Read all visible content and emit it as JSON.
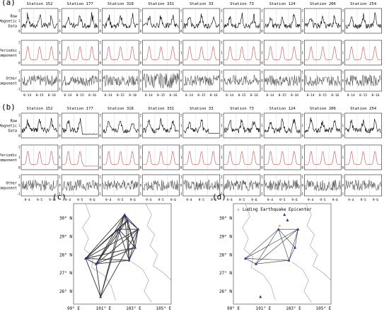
{
  "panel_labels": [
    "(a)",
    "(b)",
    "(c)",
    "(d)"
  ],
  "stations": [
    "Station 152",
    "Station 177",
    "Station 318",
    "Station 331",
    "Station 33",
    "Station 73",
    "Station 124",
    "Station 206",
    "Station 254"
  ],
  "row_labels": {
    "raw": [
      "Raw",
      "Magnetic",
      "Data"
    ],
    "periodic": [
      "Periodic",
      "Component"
    ],
    "other": [
      "Other",
      "Component"
    ]
  },
  "colors": {
    "raw": "#000000",
    "periodic": "#c0504d",
    "other": "#555555",
    "network_edge": "#333333",
    "station_marker": "#1f2fa8",
    "epicenter": "#e67e22",
    "boundary": "#9a9a9a",
    "frame": "#666666"
  },
  "chart_data": [
    {
      "type": "line",
      "panel": "(a)",
      "x_ticks": [
        "8-14",
        "8-15",
        "8-16"
      ],
      "rows": [
        {
          "name": "Raw Magnetic Data",
          "y_ticks": [
            "0",
            "1",
            "2"
          ],
          "ylim": [
            0,
            2
          ],
          "pattern": "jagged daily peaks"
        },
        {
          "name": "Periodic Component",
          "y_ticks": [
            "0",
            "1",
            "2"
          ],
          "ylim": [
            0,
            2
          ],
          "pattern": "daily cycle"
        },
        {
          "name": "Other Component",
          "y_ticks": [
            "-1",
            "0",
            "1"
          ],
          "ylim": [
            -1,
            1
          ],
          "pattern": "noise around 0"
        }
      ],
      "stations": [
        "Station 152",
        "Station 177",
        "Station 318",
        "Station 331",
        "Station 33",
        "Station 73",
        "Station 124",
        "Station 206",
        "Station 254"
      ]
    },
    {
      "type": "line",
      "panel": "(b)",
      "x_ticks": [
        "9-4",
        "9-5",
        "9-6"
      ],
      "rows": [
        {
          "name": "Raw Magnetic Data",
          "y_ticks": [
            "0",
            "1",
            "2"
          ],
          "ylim": [
            0,
            2
          ],
          "pattern": "jagged daily peaks"
        },
        {
          "name": "Periodic Component",
          "y_ticks": [
            "0",
            "1",
            "2"
          ],
          "ylim": [
            0,
            2
          ],
          "pattern": "daily cycle"
        },
        {
          "name": "Other Component",
          "y_ticks": [
            "-1",
            "0",
            "1"
          ],
          "ylim": [
            -1,
            1
          ],
          "pattern": "noise around 0"
        }
      ],
      "stations": [
        "Station 152",
        "Station 177",
        "Station 318",
        "Station 331",
        "Station 33",
        "Station 73",
        "Station 124",
        "Station 206",
        "Station 254"
      ]
    },
    {
      "type": "scatter",
      "panel": "(c)",
      "x_ticks": [
        "99° E",
        "101° E",
        "103° E",
        "105° E"
      ],
      "y_ticks": [
        "30° N",
        "29° N",
        "28° N",
        "27° N",
        "26° N"
      ],
      "xlim": [
        99,
        105.5
      ],
      "ylim": [
        25.3,
        30.8
      ],
      "stations_lonlat": [
        [
          102.4,
          30.2
        ],
        [
          103.3,
          29.4
        ],
        [
          102.0,
          29.4
        ],
        [
          99.8,
          27.8
        ],
        [
          102.7,
          27.7
        ],
        [
          103.1,
          28.4
        ],
        [
          100.5,
          27.5
        ],
        [
          100.8,
          25.7
        ],
        [
          102.6,
          29.9
        ]
      ],
      "edges": [
        [
          0,
          1
        ],
        [
          0,
          2
        ],
        [
          0,
          3
        ],
        [
          0,
          4
        ],
        [
          0,
          5
        ],
        [
          0,
          6
        ],
        [
          0,
          7
        ],
        [
          0,
          8
        ],
        [
          1,
          2
        ],
        [
          1,
          3
        ],
        [
          1,
          4
        ],
        [
          1,
          5
        ],
        [
          1,
          6
        ],
        [
          1,
          7
        ],
        [
          1,
          8
        ],
        [
          2,
          3
        ],
        [
          2,
          4
        ],
        [
          2,
          5
        ],
        [
          2,
          6
        ],
        [
          2,
          7
        ],
        [
          2,
          8
        ],
        [
          3,
          4
        ],
        [
          3,
          5
        ],
        [
          3,
          6
        ],
        [
          3,
          7
        ],
        [
          3,
          8
        ],
        [
          4,
          5
        ],
        [
          4,
          6
        ],
        [
          4,
          8
        ],
        [
          5,
          6
        ],
        [
          5,
          8
        ],
        [
          6,
          7
        ],
        [
          6,
          8
        ]
      ]
    },
    {
      "type": "scatter",
      "panel": "(d)",
      "legend": "Luding Earthquake Epicenter",
      "epicenter_lonlat": [
        102.08,
        29.59
      ],
      "x_ticks": [
        "99° E",
        "101° E",
        "103° E",
        "105° E"
      ],
      "y_ticks": [
        "30° N",
        "29° N",
        "28° N",
        "27° N",
        "26° N"
      ],
      "xlim": [
        99,
        105.5
      ],
      "ylim": [
        25.3,
        30.8
      ],
      "stations_lonlat": [
        [
          102.4,
          30.2
        ],
        [
          103.3,
          29.4
        ],
        [
          102.0,
          29.4
        ],
        [
          99.8,
          27.8
        ],
        [
          102.7,
          27.7
        ],
        [
          103.1,
          28.4
        ],
        [
          100.5,
          27.5
        ],
        [
          100.8,
          25.7
        ],
        [
          102.6,
          29.9
        ]
      ],
      "edges": [
        [
          1,
          2
        ],
        [
          1,
          3
        ],
        [
          1,
          4
        ],
        [
          1,
          6
        ],
        [
          2,
          3
        ],
        [
          2,
          4
        ],
        [
          2,
          6
        ],
        [
          3,
          4
        ],
        [
          3,
          6
        ],
        [
          4,
          6
        ],
        [
          4,
          5
        ],
        [
          1,
          5
        ],
        [
          2,
          5
        ]
      ]
    }
  ]
}
